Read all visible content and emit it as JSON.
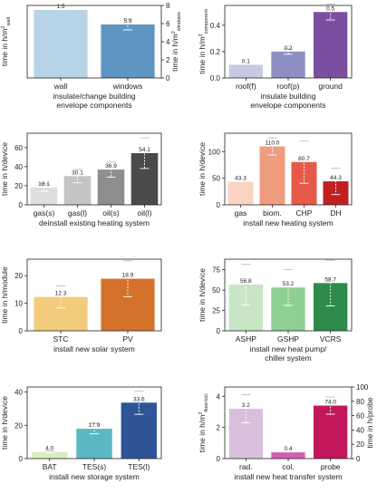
{
  "chart_data": [
    {
      "type": "bar",
      "categories": [
        "wall",
        "windows"
      ],
      "values": [
        1.5,
        5.9
      ],
      "errors": [
        null,
        0.6
      ],
      "data_labels": [
        "1.5",
        "5.9"
      ],
      "colors": [
        "#b7d3e6",
        "#5e95c3"
      ],
      "axis": [
        0,
        1
      ],
      "ylabel": "time in h/m²wall",
      "ylabel_main": "time in h/m",
      "ylabel_sub": "wall",
      "ylim": [
        0,
        1.6
      ],
      "yticks": [],
      "ylabel_right": "time in h/m²windows",
      "ylabel_right_main": "time in h/m",
      "ylabel_right_sub": "windows",
      "ylim_right": [
        0,
        8
      ],
      "yticks_right": [
        0,
        2,
        4,
        6,
        8
      ],
      "xlabel": "insulate/change building envelope components",
      "xlabel_lines": [
        "insulate/change building",
        "envelope components"
      ]
    },
    {
      "type": "bar",
      "categories": [
        "roof(f)",
        "roof(p)",
        "ground"
      ],
      "values": [
        0.1,
        0.2,
        0.5
      ],
      "errors": [
        null,
        0.02,
        0.06
      ],
      "data_labels": [
        "0.1",
        "0.2",
        "0.5"
      ],
      "colors": [
        "#c8c9e3",
        "#8c8fc2",
        "#7a4fa0"
      ],
      "ylabel": "time in h/m²component",
      "ylabel_main": "time in h/m",
      "ylabel_sub": "component",
      "ylim": [
        0,
        0.55
      ],
      "yticks": [
        0.0,
        0.2,
        0.4
      ],
      "ytick_labels": [
        "0.0",
        "0.2",
        "0.4"
      ],
      "xlabel": "insulate building envelope components",
      "xlabel_lines": [
        "insulate building",
        "envelope components"
      ]
    },
    {
      "type": "bar",
      "categories": [
        "gas(s)",
        "gas(l)",
        "oil(s)",
        "oil(l)"
      ],
      "values": [
        18.1,
        30.1,
        36.9,
        54.1
      ],
      "errors": [
        4,
        7,
        8,
        16
      ],
      "data_labels": [
        "18.1",
        "30.1",
        "36.9",
        "54.1"
      ],
      "colors": [
        "#dedede",
        "#c4c4c4",
        "#8e8e8e",
        "#4a4a4a"
      ],
      "ylabel": "time in h/device",
      "ylim": [
        0,
        75
      ],
      "yticks": [
        0,
        20,
        40,
        60
      ],
      "xlabel": "deinstall existing heating system",
      "xlabel_lines": [
        "deinstall existing heating system"
      ]
    },
    {
      "type": "bar",
      "categories": [
        "gas",
        "biom.",
        "CHP",
        "DH"
      ],
      "values": [
        43.3,
        110.0,
        80.7,
        44.3
      ],
      "errors": [
        null,
        16,
        40,
        25
      ],
      "data_labels": [
        "43.3",
        "110.0",
        "80.7",
        "44.3"
      ],
      "colors": [
        "#fbd3c1",
        "#ef9c7f",
        "#e65a4a",
        "#c0201f"
      ],
      "ylabel": "time in h/device",
      "ylim": [
        0,
        135
      ],
      "yticks": [
        0,
        50,
        100
      ],
      "xlabel": "install new heating system",
      "xlabel_lines": [
        "install new heating system"
      ]
    },
    {
      "type": "bar",
      "categories": [
        "STC",
        "PV"
      ],
      "values": [
        12.3,
        18.9
      ],
      "errors": [
        4,
        6.5
      ],
      "data_labels": [
        "12.3",
        "18.9"
      ],
      "colors": [
        "#f2cb7c",
        "#d4712a"
      ],
      "ylabel": "time in h/module",
      "ylim": [
        0,
        26
      ],
      "yticks": [
        0,
        10,
        20
      ],
      "xlabel": "install new solar system",
      "xlabel_lines": [
        "install new solar system"
      ]
    },
    {
      "type": "bar",
      "categories": [
        "ASHP",
        "GSHP",
        "VCRS"
      ],
      "values": [
        56.8,
        53.2,
        58.7
      ],
      "errors": [
        25,
        22,
        28
      ],
      "data_labels": [
        "56.8",
        "53.2",
        "58.7"
      ],
      "colors": [
        "#c8e6c5",
        "#8fcf93",
        "#2e8b4c"
      ],
      "ylabel": "time in h/device",
      "ylim": [
        0,
        88
      ],
      "yticks": [
        0,
        25,
        50,
        75
      ],
      "xlabel": "install new heat pump/ chiller system",
      "xlabel_lines": [
        "install new heat pump/",
        "chiller system"
      ]
    },
    {
      "type": "bar",
      "categories": [
        "BAT",
        "TES(s)",
        "TES(l)"
      ],
      "values": [
        4.0,
        17.9,
        33.6
      ],
      "errors": [
        0.5,
        3,
        7
      ],
      "data_labels": [
        "4.0",
        "17.9",
        "33.6"
      ],
      "colors": [
        "#d9eec0",
        "#5bb8c2",
        "#2f5597"
      ],
      "ylabel": "time in h/device",
      "ylim": [
        0,
        43
      ],
      "yticks": [
        0,
        20,
        40
      ],
      "xlabel": "install new storage system",
      "xlabel_lines": [
        "install new storage system"
      ]
    },
    {
      "type": "bar",
      "categories": [
        "rad.",
        "col.",
        "probe"
      ],
      "values": [
        3.2,
        0.4,
        74.0
      ],
      "errors": [
        0.9,
        null,
        12
      ],
      "data_labels": [
        "3.2",
        "0.4",
        "74.0"
      ],
      "colors": [
        "#d9bfdc",
        "#cf5fb3",
        "#c2185b"
      ],
      "axis": [
        0,
        0,
        1
      ],
      "ylabel": "time in h/m²floor/col.",
      "ylabel_main": "time in h/m",
      "ylabel_sub": "floor/col.",
      "ylim": [
        0,
        4.6
      ],
      "yticks": [
        0,
        2,
        4
      ],
      "ylabel_right": "time in h/probe",
      "ylim_right": [
        0,
        100
      ],
      "yticks_right": [
        0,
        20,
        40,
        60,
        80,
        100
      ],
      "xlabel": "install new heat transfer system",
      "xlabel_lines": [
        "install new heat transfer system"
      ]
    }
  ]
}
